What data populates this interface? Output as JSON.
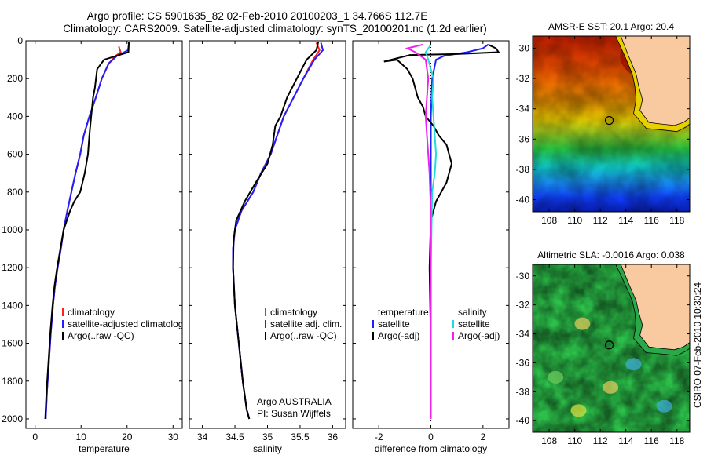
{
  "header": {
    "line1": "Argo profile: CS 5901635_82 02-Feb-2010 20100203_1 34.766S 112.7E",
    "line2": "Climatology: CARS2009. Satellite-adjusted climatology: synTS_20100201.nc (1.2d earlier)"
  },
  "side_label": "CSIRO 07-Feb-2010 10:30:24",
  "colors": {
    "climatology": "#ff2020",
    "satellite": "#1f1fff",
    "argo": "#000000",
    "satellite_s": "#22dddd",
    "argo_s": "#ee22ee"
  },
  "chart_data": [
    {
      "type": "line",
      "xlabel": "temperature",
      "xlim": [
        -2,
        32
      ],
      "xticks": [
        0,
        10,
        20,
        30
      ],
      "ylim": [
        0,
        2050
      ],
      "yticks": [
        0,
        200,
        400,
        600,
        800,
        1000,
        1200,
        1400,
        1600,
        1800,
        2000
      ],
      "legend": [
        "climatology",
        "satellite-adjusted climatology",
        "Argo(..raw -QC)"
      ],
      "series": [
        {
          "name": "climatology",
          "color": "#ff2020",
          "x": [
            18.2,
            18.6,
            17.5,
            16.0,
            14.5,
            13.2,
            11.8,
            10.6,
            9.8,
            8.8,
            7.9,
            7.0,
            6.2,
            5.6,
            4.9,
            4.3,
            3.9,
            3.4,
            3.0,
            2.6,
            2.3
          ],
          "y": [
            30,
            60,
            80,
            120,
            200,
            300,
            400,
            500,
            600,
            700,
            800,
            900,
            1000,
            1100,
            1200,
            1300,
            1400,
            1550,
            1700,
            1850,
            2000
          ]
        },
        {
          "name": "satellite-adjusted climatology",
          "color": "#1f1fff",
          "x": [
            20.4,
            20.2,
            17.8,
            16.0,
            14.5,
            13.2,
            11.8,
            10.6,
            9.8,
            8.8,
            7.9,
            7.0,
            6.2,
            5.6,
            4.9,
            4.3,
            3.9,
            3.4,
            3.0,
            2.6,
            2.3
          ],
          "y": [
            20,
            50,
            80,
            120,
            200,
            300,
            400,
            500,
            600,
            700,
            800,
            900,
            1000,
            1100,
            1200,
            1300,
            1400,
            1550,
            1700,
            1850,
            2000
          ]
        },
        {
          "name": "Argo(..raw -QC)",
          "color": "#000000",
          "x": [
            20.4,
            20.3,
            15.0,
            13.5,
            13.0,
            12.6,
            12.2,
            11.8,
            11.5,
            10.8,
            9.8,
            8.5,
            7.6,
            6.9,
            6.2,
            5.5,
            4.8,
            4.2,
            3.8,
            3.3,
            2.9,
            2.5,
            2.2
          ],
          "y": [
            5,
            60,
            100,
            150,
            250,
            300,
            400,
            500,
            600,
            700,
            800,
            850,
            900,
            950,
            1000,
            1100,
            1200,
            1300,
            1400,
            1550,
            1700,
            1850,
            2000
          ]
        }
      ]
    },
    {
      "type": "line",
      "xlabel": "salinity",
      "xlim": [
        33.8,
        36.2
      ],
      "xticks": [
        34,
        34.5,
        35,
        35.5,
        36
      ],
      "ylim": [
        0,
        2050
      ],
      "legend": [
        "climatology",
        "satellite adj. clim.",
        "Argo(..raw -QC)"
      ],
      "annotation": [
        "Argo AUSTRALIA",
        "PI: Susan Wijffels"
      ],
      "series": [
        {
          "name": "climatology",
          "color": "#ff2020",
          "x": [
            35.75,
            35.8,
            35.7,
            35.55,
            35.4,
            35.25,
            35.15,
            35.05,
            34.9,
            34.78,
            34.6,
            34.5,
            34.47,
            34.47,
            34.5,
            34.56,
            34.62,
            34.68,
            34.72
          ],
          "y": [
            10,
            50,
            100,
            200,
            300,
            400,
            500,
            600,
            700,
            800,
            900,
            1000,
            1100,
            1200,
            1400,
            1600,
            1800,
            1950,
            2000
          ]
        },
        {
          "name": "satellite adj. clim.",
          "color": "#1f1fff",
          "x": [
            35.82,
            35.85,
            35.72,
            35.55,
            35.4,
            35.25,
            35.15,
            35.05,
            34.9,
            34.78,
            34.6,
            34.5,
            34.47,
            34.47,
            34.5,
            34.56,
            34.62,
            34.68,
            34.72
          ],
          "y": [
            10,
            50,
            100,
            200,
            300,
            400,
            500,
            600,
            700,
            800,
            900,
            1000,
            1100,
            1200,
            1400,
            1600,
            1800,
            1950,
            2000
          ]
        },
        {
          "name": "Argo(..raw -QC)",
          "color": "#000000",
          "x": [
            35.78,
            35.75,
            35.6,
            35.45,
            35.3,
            35.2,
            35.12,
            35.08,
            35.0,
            34.82,
            34.65,
            34.52,
            34.48,
            34.47,
            34.5,
            34.56,
            34.62,
            34.68,
            34.72
          ],
          "y": [
            5,
            50,
            100,
            200,
            300,
            400,
            450,
            550,
            650,
            750,
            850,
            950,
            1050,
            1200,
            1400,
            1600,
            1800,
            1950,
            2000
          ]
        }
      ]
    },
    {
      "type": "line",
      "xlabel": "difference from climatology",
      "xlim": [
        -3,
        3
      ],
      "xticks": [
        -2,
        0,
        2
      ],
      "ylim": [
        0,
        2050
      ],
      "legend_left_title": "temperature",
      "legend_right_title": "salinity",
      "legend_left": [
        "satellite",
        "Argo(-adj)"
      ],
      "legend_right": [
        "satellite",
        "Argo(-adj)"
      ],
      "series": [
        {
          "name": "temperature satellite",
          "color": "#1f1fff",
          "x": [
            2.2,
            2.0,
            1.4,
            0.5,
            0.2,
            0.05,
            0.0,
            0.0,
            0.0,
            0.0,
            0.0
          ],
          "y": [
            20,
            40,
            60,
            80,
            100,
            200,
            400,
            800,
            1200,
            1600,
            2000
          ]
        },
        {
          "name": "temperature Argo(-adj)",
          "color": "#000000",
          "x": [
            2.2,
            2.5,
            2.6,
            1.0,
            -0.8,
            -1.8,
            -1.3,
            -0.9,
            -0.7,
            -0.6,
            -0.5,
            -0.3,
            -0.2,
            0.1,
            0.3,
            0.6,
            0.8,
            0.6,
            0.2,
            0.0,
            -0.05,
            0.0,
            0.0
          ],
          "y": [
            20,
            40,
            60,
            70,
            75,
            110,
            100,
            150,
            200,
            250,
            300,
            350,
            400,
            450,
            500,
            550,
            650,
            750,
            850,
            950,
            1200,
            1600,
            2000
          ]
        },
        {
          "name": "salinity satellite",
          "color": "#22dddd",
          "x": [
            0.0,
            -0.2,
            -0.1,
            0.1,
            0.05,
            0.1,
            0.2,
            0.15,
            0.05,
            0.0,
            0.0
          ],
          "y": [
            20,
            60,
            100,
            200,
            300,
            400,
            600,
            700,
            800,
            1200,
            2000
          ]
        },
        {
          "name": "salinity Argo(-adj)",
          "color": "#ee22ee",
          "x": [
            -0.3,
            -0.9,
            -0.6,
            -0.2,
            -0.1,
            -0.15,
            -0.2,
            -0.15,
            -0.1,
            -0.05,
            0.0,
            0.0
          ],
          "y": [
            20,
            40,
            60,
            100,
            200,
            300,
            400,
            500,
            600,
            700,
            900,
            2000
          ]
        }
      ]
    }
  ],
  "maps": [
    {
      "title": "AMSR-E SST: 20.1 Argo: 20.4",
      "xlim": [
        106.7,
        119
      ],
      "ylim": [
        -40.8,
        -29.2
      ],
      "xticks": [
        108,
        110,
        112,
        114,
        116,
        118
      ],
      "yticks": [
        -30,
        -32,
        -34,
        -36,
        -38,
        -40
      ],
      "marker": {
        "lon": 112.7,
        "lat": -34.77
      }
    },
    {
      "title": "Altimetric SLA: -0.0016 Argo: 0.038",
      "xlim": [
        106.7,
        119
      ],
      "ylim": [
        -40.8,
        -29.2
      ],
      "xticks": [
        108,
        110,
        112,
        114,
        116,
        118
      ],
      "yticks": [
        -30,
        -32,
        -34,
        -36,
        -38,
        -40
      ],
      "marker": {
        "lon": 112.7,
        "lat": -34.77
      }
    }
  ]
}
